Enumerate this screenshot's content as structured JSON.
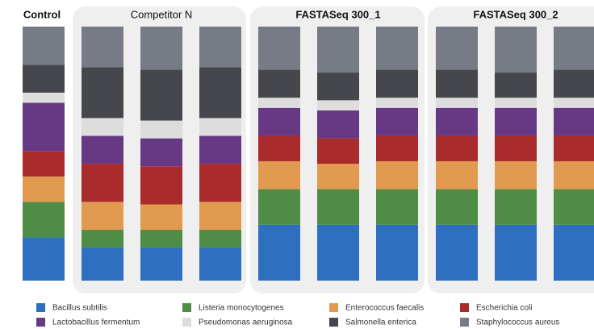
{
  "chart_data": {
    "type": "stacked-bar",
    "series": [
      {
        "name": "Bacillus subtilis",
        "color": "#2f6fc0"
      },
      {
        "name": "Listeria monocytogenes",
        "color": "#4f8c45"
      },
      {
        "name": "Enterococcus faecalis",
        "color": "#e19a50"
      },
      {
        "name": "Escherichia coli",
        "color": "#a92b2b"
      },
      {
        "name": "Lactobacillus fermentum",
        "color": "#673985"
      },
      {
        "name": "Pseudomonas aeruginosa",
        "color": "#dddddd"
      },
      {
        "name": "Salmonella enterica",
        "color": "#45474d"
      },
      {
        "name": "Staphylococcus aureus",
        "color": "#767b85"
      }
    ],
    "groups": [
      {
        "name": "Control",
        "bars": [
          [
            17,
            14,
            10,
            10,
            19,
            4,
            11,
            15
          ]
        ]
      },
      {
        "name": "Competitor N",
        "bars": [
          [
            13,
            7,
            11,
            15,
            11,
            7,
            20,
            16
          ],
          [
            13,
            7,
            10,
            15,
            11,
            7,
            20,
            17
          ],
          [
            13,
            7,
            11,
            15,
            11,
            7,
            20,
            16
          ]
        ]
      },
      {
        "name": "FASTASeq 300_1",
        "bars": [
          [
            22,
            14,
            11,
            10,
            11,
            4,
            11,
            17
          ],
          [
            22,
            14,
            10,
            10,
            11,
            4,
            11,
            18
          ],
          [
            22,
            14,
            11,
            10,
            11,
            4,
            11,
            17
          ]
        ]
      },
      {
        "name": "FASTASeq 300_2",
        "bars": [
          [
            22,
            14,
            11,
            10,
            11,
            4,
            11,
            17
          ],
          [
            22,
            14,
            11,
            10,
            11,
            4,
            10,
            18
          ],
          [
            22,
            14,
            11,
            10,
            11,
            4,
            11,
            17
          ]
        ]
      }
    ]
  }
}
